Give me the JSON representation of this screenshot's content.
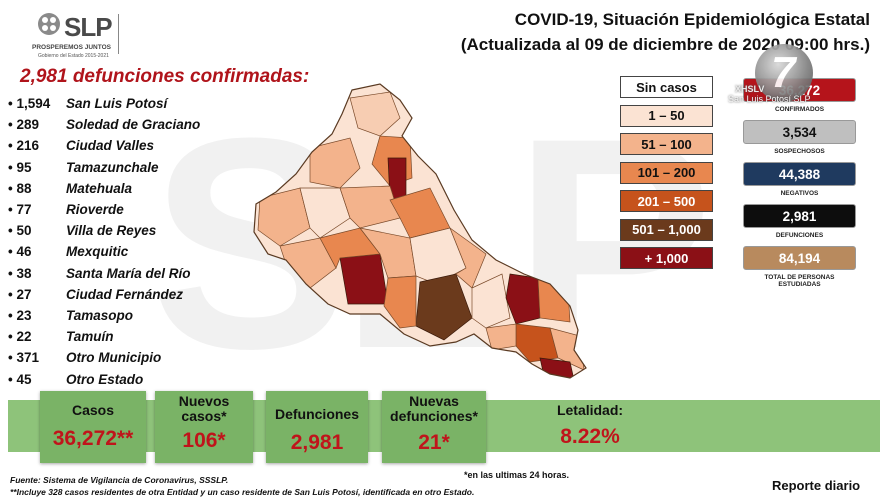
{
  "watermark": "SLP",
  "logo": {
    "text": "SLP",
    "slogan": "PROSPEREMOS JUNTOS",
    "subtitle": "Gobierno del Estado 2015-2021"
  },
  "header": {
    "title_line1": "COVID-19, Situación Epidemiológica Estatal",
    "title_line2": "(Actualizada al 09 de diciembre de 2020 09:00 hrs.)"
  },
  "deaths_heading": "2,981 defunciones confirmadas:",
  "municipalities": [
    {
      "count": "1,594",
      "name": "San Luis Potosí"
    },
    {
      "count": "289",
      "name": "Soledad de Graciano"
    },
    {
      "count": "216",
      "name": "Ciudad Valles"
    },
    {
      "count": "95",
      "name": "Tamazunchale"
    },
    {
      "count": "88",
      "name": "Matehuala"
    },
    {
      "count": "77",
      "name": "Rioverde"
    },
    {
      "count": "50",
      "name": "Villa de Reyes"
    },
    {
      "count": "46",
      "name": "Mexquitic"
    },
    {
      "count": "38",
      "name": "Santa María del Río"
    },
    {
      "count": "27",
      "name": "Ciudad Fernández"
    },
    {
      "count": "23",
      "name": "Tamasopo"
    },
    {
      "count": "22",
      "name": "Tamuín"
    },
    {
      "count": "371",
      "name": "Otro Municipio"
    },
    {
      "count": "45",
      "name": "Otro Estado"
    }
  ],
  "legend": [
    {
      "label": "Sin casos",
      "bg": "#ffffff",
      "fg": "#111111"
    },
    {
      "label": "1 – 50",
      "bg": "#fbe3d3",
      "fg": "#111111"
    },
    {
      "label": "51 – 100",
      "bg": "#f3b38c",
      "fg": "#111111"
    },
    {
      "label": "101 – 200",
      "bg": "#e8874f",
      "fg": "#111111"
    },
    {
      "label": "201 – 500",
      "bg": "#c6531c",
      "fg": "#ffffff"
    },
    {
      "label": "501 – 1,000",
      "bg": "#6b3a1c",
      "fg": "#ffffff"
    },
    {
      "label": "+ 1,000",
      "bg": "#8b1016",
      "fg": "#ffffff"
    }
  ],
  "stats": [
    {
      "value": "36,272",
      "label": "CONFIRMADOS",
      "bg": "#b5141b",
      "fg": "#ffffff"
    },
    {
      "value": "3,534",
      "label": "SOSPECHOSOS",
      "bg": "#bfbfbf",
      "fg": "#111111"
    },
    {
      "value": "44,388",
      "label": "NEGATIVOS",
      "bg": "#1f3a5f",
      "fg": "#ffffff"
    },
    {
      "value": "2,981",
      "label": "DEFUNCIONES",
      "bg": "#0d0d0d",
      "fg": "#ffffff"
    },
    {
      "value": "84,194",
      "label": "TOTAL DE PERSONAS ESTUDIADAS",
      "bg": "#b88a5e",
      "fg": "#ffffff"
    }
  ],
  "channel": {
    "mark": "7",
    "line1": "XHSLV",
    "line2": "San Luis Potosí SLP"
  },
  "summary": {
    "cases_label": "Casos",
    "cases_value": "36,272**",
    "new_cases_label": "Nuevos casos*",
    "new_cases_value": "106*",
    "deaths_label": "Defunciones",
    "deaths_value": "2,981",
    "new_deaths_label": "Nuevas defunciones*",
    "new_deaths_value": "21*",
    "lethality_label": "Letalidad:",
    "lethality_value": "8.22%"
  },
  "notes": {
    "last24": "*en las ultimas 24 horas.",
    "source": "Fuente: Sistema de Vigilancia de Coronavirus, SSSLP.",
    "footnote": "**Incluye 328 casos residentes de otra Entidad y un caso residente de San Luis Potosí, identificada en otro Estado.",
    "daily_report": "Reporte diario"
  },
  "map_fills": [
    "#fbe3d3",
    "#f3b38c",
    "#e8874f",
    "#c6531c",
    "#6b3a1c",
    "#8b1016",
    "#ffffff"
  ]
}
